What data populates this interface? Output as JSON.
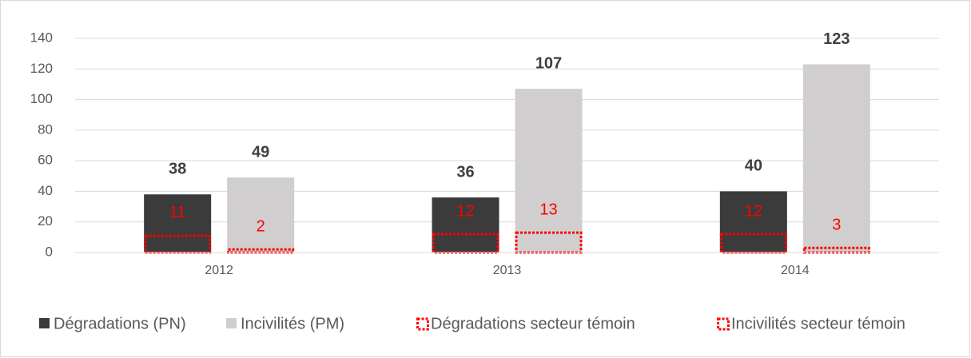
{
  "chart_data": {
    "type": "bar",
    "categories": [
      "2012",
      "2013",
      "2014"
    ],
    "series": [
      {
        "name": "Dégradations (PN)",
        "color": "#3b3b3b",
        "values": [
          38,
          36,
          40
        ]
      },
      {
        "name": "Incivilités (PM)",
        "color": "#d0cece",
        "values": [
          49,
          107,
          123
        ]
      },
      {
        "name": "Dégradations secteur témoin",
        "color": "#ff0000",
        "border": "dotted",
        "values": [
          11,
          12,
          12
        ]
      },
      {
        "name": "Incivilités secteur témoin",
        "color": "#ff0000",
        "border": "dotted",
        "values": [
          2,
          13,
          3
        ]
      }
    ],
    "ylim": [
      0,
      140
    ],
    "yticks": [
      0,
      20,
      40,
      60,
      80,
      100,
      120,
      140
    ],
    "grid": true,
    "legend": "bottom"
  }
}
